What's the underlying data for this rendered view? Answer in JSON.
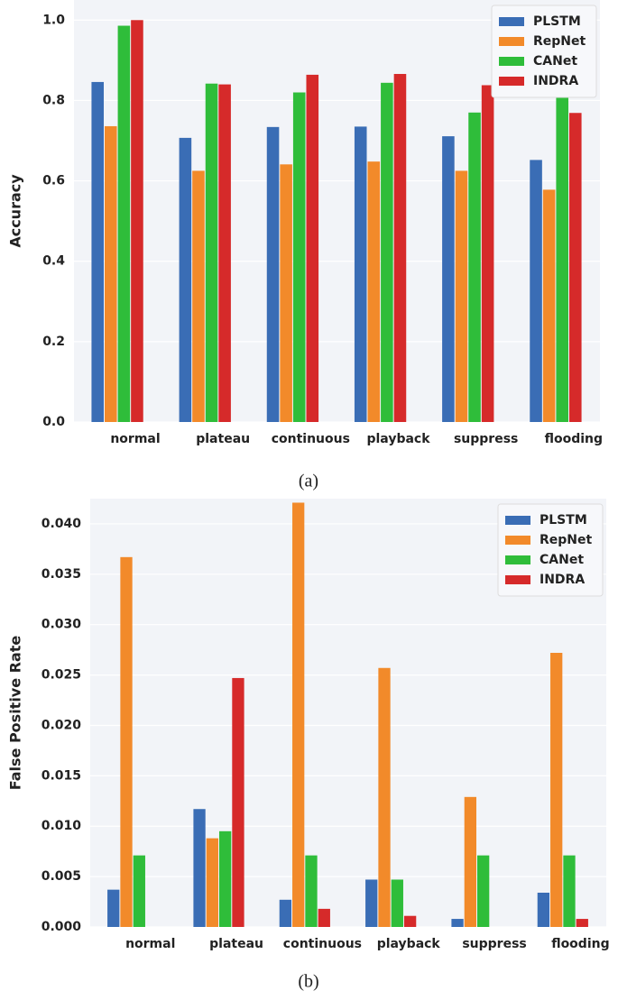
{
  "chart_data": [
    {
      "type": "bar",
      "y_label": "Accuracy",
      "caption": "(a)",
      "categories": [
        "normal",
        "plateau",
        "continuous",
        "playback",
        "suppress",
        "flooding"
      ],
      "series": [
        {
          "name": "PLSTM",
          "color": "#3a6db5",
          "values": [
            0.846,
            0.707,
            0.734,
            0.735,
            0.711,
            0.652
          ]
        },
        {
          "name": "RepNet",
          "color": "#f28a2a",
          "values": [
            0.736,
            0.625,
            0.641,
            0.648,
            0.625,
            0.578
          ]
        },
        {
          "name": "CANet",
          "color": "#2fbd3a",
          "values": [
            0.986,
            0.842,
            0.82,
            0.844,
            0.77,
            0.81
          ]
        },
        {
          "name": "INDRA",
          "color": "#d62a2a",
          "values": [
            1.0,
            0.84,
            0.864,
            0.866,
            0.838,
            0.769
          ]
        }
      ],
      "ylim": [
        0,
        1.05
      ],
      "yticks": [
        {
          "value": 0,
          "label": "0.0"
        },
        0.2,
        0.4,
        0.6,
        0.8,
        {
          "value": 1,
          "label": "1.0"
        }
      ],
      "grid": true,
      "legend": "upper right"
    },
    {
      "type": "bar",
      "y_label": "False Positive Rate",
      "caption": "(b)",
      "categories": [
        "normal",
        "plateau",
        "continuous",
        "playback",
        "suppress",
        "flooding"
      ],
      "series": [
        {
          "name": "PLSTM",
          "color": "#3a6db5",
          "values": [
            0.0037,
            0.0117,
            0.0027,
            0.0047,
            0.0008,
            0.0034
          ]
        },
        {
          "name": "RepNet",
          "color": "#f28a2a",
          "values": [
            0.0367,
            0.0088,
            0.0421,
            0.0257,
            0.0129,
            0.0272
          ]
        },
        {
          "name": "CANet",
          "color": "#2fbd3a",
          "values": [
            0.0071,
            0.0095,
            0.0071,
            0.0047,
            0.0071,
            0.0071
          ]
        },
        {
          "name": "INDRA",
          "color": "#d62a2a",
          "values": [
            0,
            0.0247,
            0.0018,
            0.0011,
            0,
            0.0008
          ]
        }
      ],
      "ylim": [
        0,
        0.0425
      ],
      "yticks": [
        {
          "value": 0,
          "label": "0.000"
        },
        0.005,
        {
          "value": 0.01,
          "label": "0.010"
        },
        0.015,
        {
          "value": 0.02,
          "label": "0.020"
        },
        0.025,
        {
          "value": 0.03,
          "label": "0.030"
        },
        0.035,
        {
          "value": 0.04,
          "label": "0.040"
        }
      ],
      "grid": true,
      "legend": "upper right"
    }
  ]
}
